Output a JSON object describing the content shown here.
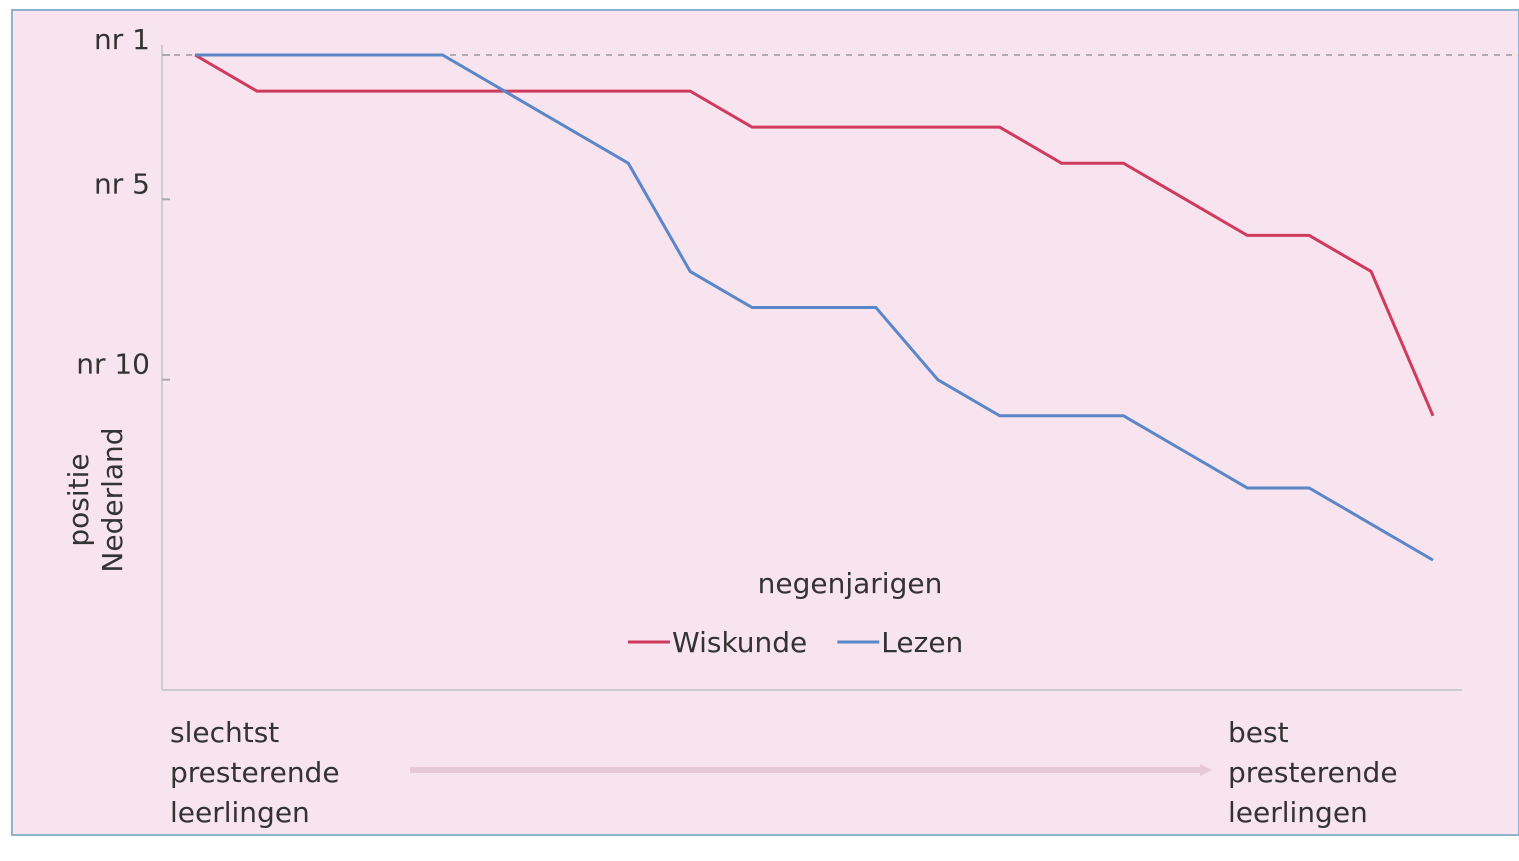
{
  "chart_data": {
    "type": "line",
    "y_label_lines": [
      "positie",
      "Nederland"
    ],
    "x_label": "negenjarigen",
    "categories": [
      null,
      null,
      null,
      null,
      null,
      null,
      null,
      null,
      null,
      null,
      null,
      null,
      null,
      null,
      null,
      null,
      null,
      null,
      null,
      null,
      null
    ],
    "series": [
      {
        "name": "Wiskunde",
        "color": "#d03a5e",
        "values": [
          1,
          2,
          2,
          2,
          2,
          2,
          2,
          2,
          2,
          3,
          3,
          3,
          3,
          3,
          4,
          4,
          5,
          6,
          6,
          7,
          11
        ]
      },
      {
        "name": "Lezen",
        "color": "#5b86c8",
        "values": [
          1,
          1,
          1,
          1,
          1,
          2,
          3,
          4,
          7,
          8,
          8,
          8,
          10,
          11,
          11,
          11,
          12,
          13,
          13,
          14,
          15
        ]
      }
    ],
    "ylim": [
      1,
      18.6
    ],
    "y_reversed": true,
    "yticks": [
      {
        "value": 1,
        "label": "nr 1"
      },
      {
        "value": 5,
        "label": "nr 5"
      },
      {
        "value": 10,
        "label": "nr 10"
      }
    ],
    "reference_line": 1,
    "annotations": {
      "left": [
        "slechtst",
        "presterende",
        "leerlingen"
      ],
      "right": [
        "best",
        "presterende",
        "leerlingen"
      ]
    }
  }
}
